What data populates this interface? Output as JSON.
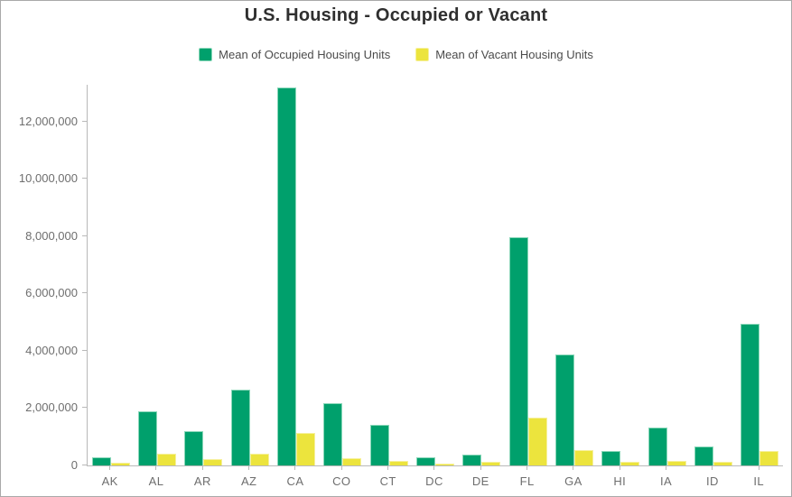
{
  "header": {
    "background": "#ffffff",
    "frame_border_color": "#a9a9a9"
  },
  "axis_style": {
    "line_color": "#b9b9b9",
    "label_color": "#6e6e6e",
    "title_color": "#2f2f2f",
    "legend_text_color": "#4b4b4b"
  },
  "chart_data": {
    "type": "bar",
    "title": "U.S. Housing - Occupied or Vacant",
    "categories": [
      "AK",
      "AL",
      "AR",
      "AZ",
      "CA",
      "CO",
      "CT",
      "DC",
      "DE",
      "FL",
      "GA",
      "HI",
      "IA",
      "ID",
      "IL"
    ],
    "series": [
      {
        "name": "Mean of Occupied Housing Units",
        "color": "#00a06c",
        "edge_color": "#8ad7b9",
        "values": [
          250000,
          1870000,
          1160000,
          2610000,
          13150000,
          2130000,
          1380000,
          260000,
          360000,
          7950000,
          3840000,
          460000,
          1290000,
          630000,
          4900000
        ]
      },
      {
        "name": "Mean of Vacant Housing Units",
        "color": "#ece43d",
        "edge_color": "#f6f09b",
        "values": [
          60000,
          390000,
          190000,
          390000,
          1100000,
          220000,
          140000,
          40000,
          110000,
          1630000,
          500000,
          90000,
          140000,
          90000,
          480000
        ]
      }
    ],
    "xlabel": "",
    "ylabel": "",
    "ylim": [
      0,
      13200000
    ],
    "yticks": [
      {
        "value": 0,
        "label": "0"
      },
      {
        "value": 2000000,
        "label": "2,000,000"
      },
      {
        "value": 4000000,
        "label": "4,000,000"
      },
      {
        "value": 6000000,
        "label": "6,000,000"
      },
      {
        "value": 8000000,
        "label": "8,000,000"
      },
      {
        "value": 10000000,
        "label": "10,000,000"
      },
      {
        "value": 12000000,
        "label": "12,000,000"
      }
    ],
    "grid": false,
    "legend_position": "top"
  }
}
